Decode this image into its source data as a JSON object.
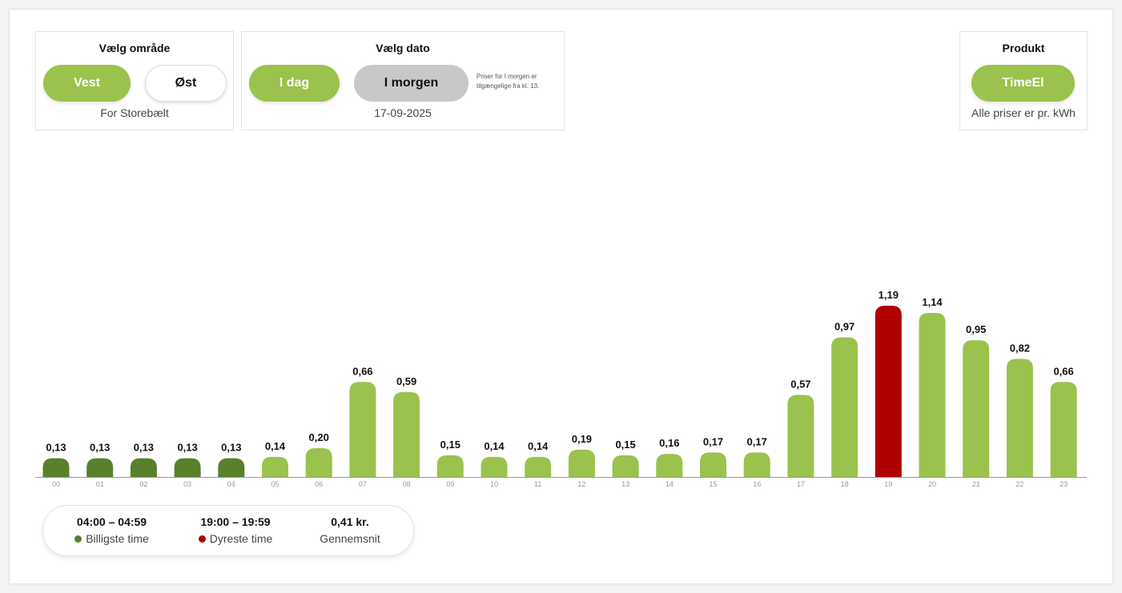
{
  "area": {
    "title": "Vælg område",
    "options": [
      "Vest",
      "Øst"
    ],
    "selected": "Vest",
    "subtitle": "For Storebælt"
  },
  "date": {
    "title": "Vælg dato",
    "options": [
      "I dag",
      "I morgen"
    ],
    "selected": "I dag",
    "note": "Priser for I morgen er tilgængelige fra kl. 13.",
    "value": "17-09-2025"
  },
  "product": {
    "title": "Produkt",
    "option": "TimeEl",
    "subtitle": "Alle priser er pr. kWh"
  },
  "colors": {
    "green": "#9bc24c",
    "dark_green": "#58802b",
    "red": "#b00000",
    "grey": "#c8c8c8"
  },
  "chart_data": {
    "type": "bar",
    "categories": [
      "00",
      "01",
      "02",
      "03",
      "04",
      "05",
      "06",
      "07",
      "08",
      "09",
      "10",
      "11",
      "12",
      "13",
      "14",
      "15",
      "16",
      "17",
      "18",
      "19",
      "20",
      "21",
      "22",
      "23"
    ],
    "values": [
      0.13,
      0.13,
      0.13,
      0.13,
      0.13,
      0.14,
      0.2,
      0.66,
      0.59,
      0.15,
      0.14,
      0.14,
      0.19,
      0.15,
      0.16,
      0.17,
      0.17,
      0.57,
      0.97,
      1.19,
      1.14,
      0.95,
      0.82,
      0.66
    ],
    "labels": [
      "0,13",
      "0,13",
      "0,13",
      "0,13",
      "0,13",
      "0,14",
      "0,20",
      "0,66",
      "0,59",
      "0,15",
      "0,14",
      "0,14",
      "0,19",
      "0,15",
      "0,16",
      "0,17",
      "0,17",
      "0,57",
      "0,97",
      "1,19",
      "1,14",
      "0,95",
      "0,82",
      "0,66"
    ],
    "cheapest_indices": [
      0,
      1,
      2,
      3,
      4
    ],
    "most_expensive_index": 19,
    "ylim": [
      0,
      1.19
    ]
  },
  "summary": {
    "cheapest_time": "04:00 – 04:59",
    "cheapest_label": "Billigste time",
    "expensive_time": "19:00 – 19:59",
    "expensive_label": "Dyreste time",
    "average_value": "0,41 kr.",
    "average_label": "Gennemsnit"
  }
}
